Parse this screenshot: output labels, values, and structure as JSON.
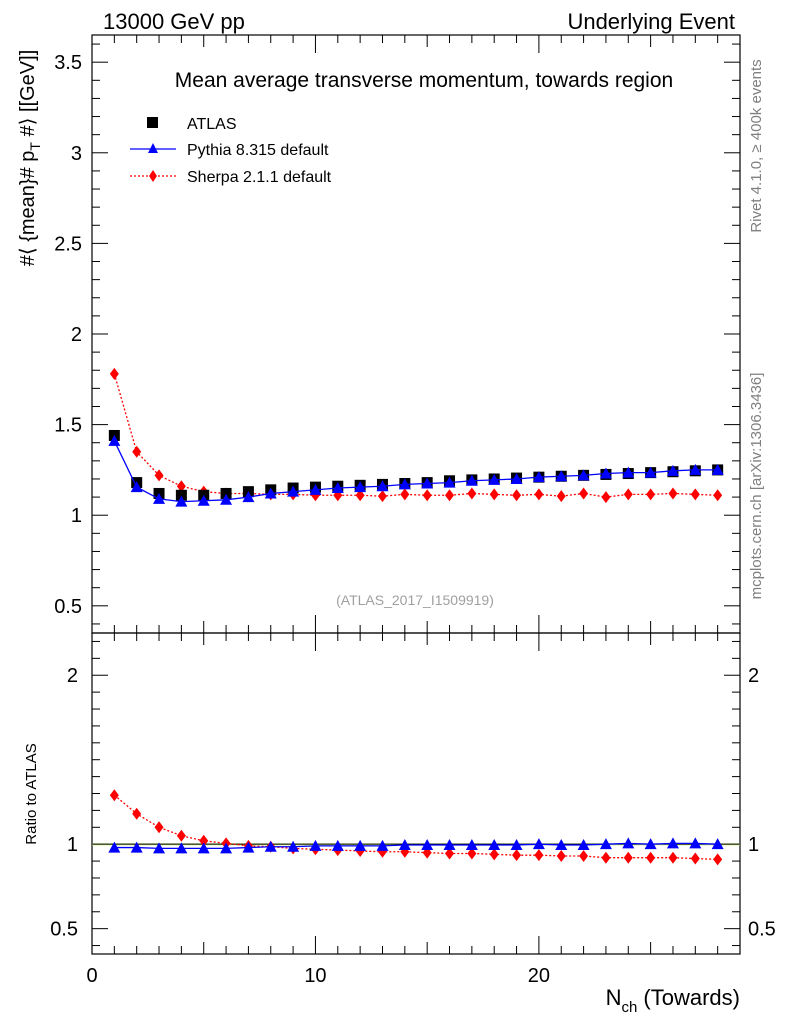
{
  "header": {
    "left": "13000 GeV pp",
    "right": "Underlying Event"
  },
  "side_labels": {
    "rivet": "Rivet 4.1.0, ≥ 400k events",
    "mcplots": "mcplots.cern.ch [arXiv:1306.3436]"
  },
  "chart_data": {
    "type": "scatter",
    "title": "Mean average transverse momentum, towards region",
    "analysis_tag": "(ATLAS_2017_I1509919)",
    "xlabel": "N_ch (Towards)",
    "xlabel_main": "N",
    "xlabel_sub": "ch",
    "xlabel_rest": " (Towards)",
    "ylabel": "#⟨ {mean}# p_T #⟩ [[GeV]]",
    "ylabel_main": "#⟨ {mean}# p",
    "ylabel_sub": "T",
    "ylabel_rest": " #⟩ [[GeV]]",
    "ratio_ylabel": "Ratio to ATLAS",
    "xlim": [
      0,
      29
    ],
    "ylim": [
      0.35,
      3.65
    ],
    "ratio_ylim": [
      0.35,
      2.25
    ],
    "x_ticks": [
      "0",
      "10",
      "20"
    ],
    "y_ticks": [
      "0.5",
      "1",
      "1.5",
      "2",
      "2.5",
      "3",
      "3.5"
    ],
    "ratio_y_ticks": [
      "0.5",
      "1",
      "2"
    ],
    "legend": [
      "ATLAS",
      "Pythia 8.315 default",
      "Sherpa 2.1.1 default"
    ],
    "x": [
      1,
      2,
      3,
      4,
      5,
      6,
      7,
      8,
      9,
      10,
      11,
      12,
      13,
      14,
      15,
      16,
      17,
      18,
      19,
      20,
      21,
      22,
      23,
      24,
      25,
      26,
      27,
      28
    ],
    "series": [
      {
        "name": "ATLAS",
        "color": "#000000",
        "values": [
          1.44,
          1.18,
          1.12,
          1.11,
          1.11,
          1.12,
          1.13,
          1.14,
          1.15,
          1.155,
          1.16,
          1.165,
          1.17,
          1.175,
          1.18,
          1.19,
          1.195,
          1.2,
          1.205,
          1.21,
          1.215,
          1.22,
          1.225,
          1.23,
          1.235,
          1.24,
          1.245,
          1.25
        ]
      },
      {
        "name": "Pythia 8.315 default",
        "color": "#0000ff",
        "values": [
          1.41,
          1.155,
          1.09,
          1.075,
          1.08,
          1.085,
          1.1,
          1.12,
          1.13,
          1.14,
          1.15,
          1.155,
          1.16,
          1.17,
          1.175,
          1.18,
          1.19,
          1.195,
          1.2,
          1.21,
          1.215,
          1.22,
          1.23,
          1.235,
          1.235,
          1.245,
          1.25,
          1.25
        ]
      },
      {
        "name": "Sherpa 2.1.1 default",
        "color": "#ff0000",
        "values": [
          1.78,
          1.35,
          1.22,
          1.16,
          1.13,
          1.12,
          1.12,
          1.115,
          1.115,
          1.11,
          1.11,
          1.11,
          1.105,
          1.115,
          1.11,
          1.11,
          1.12,
          1.115,
          1.11,
          1.115,
          1.105,
          1.12,
          1.1,
          1.115,
          1.115,
          1.12,
          1.115,
          1.11
        ]
      }
    ],
    "ratio_series": [
      {
        "name": "Pythia 8.315 default",
        "color": "#0000ff",
        "values": [
          0.98,
          0.98,
          0.975,
          0.975,
          0.975,
          0.975,
          0.98,
          0.985,
          0.985,
          0.99,
          0.99,
          0.99,
          0.99,
          0.995,
          0.995,
          0.995,
          0.995,
          0.995,
          0.995,
          1.0,
          0.995,
          0.995,
          1.0,
          1.005,
          1.0,
          1.005,
          1.005,
          1.0
        ]
      },
      {
        "name": "Sherpa 2.1.1 default",
        "color": "#ff0000",
        "values": [
          1.29,
          1.18,
          1.1,
          1.05,
          1.02,
          1.005,
          0.99,
          0.985,
          0.975,
          0.97,
          0.965,
          0.96,
          0.955,
          0.955,
          0.95,
          0.945,
          0.945,
          0.94,
          0.935,
          0.935,
          0.93,
          0.93,
          0.92,
          0.92,
          0.92,
          0.92,
          0.915,
          0.91
        ]
      }
    ]
  }
}
